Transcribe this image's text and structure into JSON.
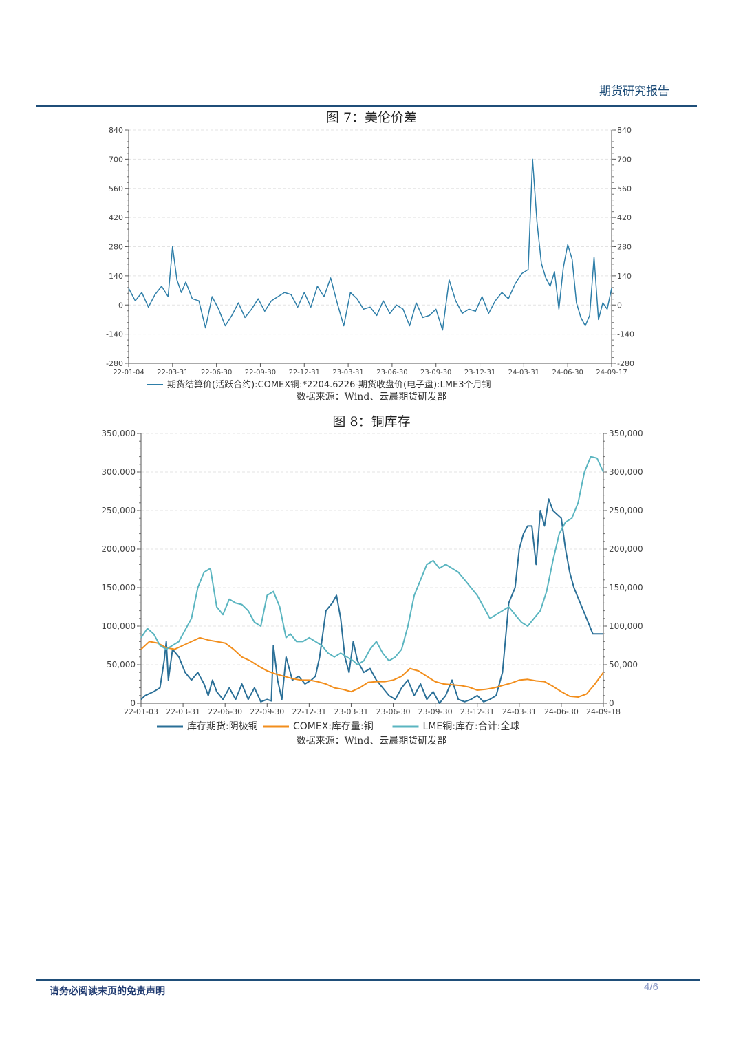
{
  "header": {
    "title": "期货研究报告"
  },
  "footer": {
    "disclaimer": "请务必阅读末页的免责声明",
    "page": "4/6"
  },
  "figures": [
    {
      "title": "图 7：美伦价差",
      "source": "数据来源：Wind、云晨期货研发部"
    },
    {
      "title": "图 8：铜库存",
      "source": "数据来源：Wind、云晨期货研发部"
    }
  ],
  "chart_data": [
    {
      "type": "line",
      "title": "图 7：美伦价差",
      "xlabel": "",
      "ylabel": "",
      "x_ticks": [
        "22-01-04",
        "22-03-31",
        "22-06-30",
        "22-09-30",
        "22-12-31",
        "23-03-31",
        "23-06-30",
        "23-09-30",
        "23-12-31",
        "24-03-31",
        "24-06-30",
        "24-09-17"
      ],
      "y_ticks": [
        "-280",
        "-140",
        "0",
        "140",
        "280",
        "420",
        "560",
        "700",
        "840"
      ],
      "ylim": [
        -280,
        840
      ],
      "grid": true,
      "legend_position": "bottom",
      "series": [
        {
          "name": "期货结算价(活跃合约):COMEX铜:*2204.6226-期货收盘价(电子盘):LME3个月铜",
          "color": "#2e7ea8",
          "x_index": [
            0,
            0.15,
            0.3,
            0.45,
            0.6,
            0.75,
            0.9,
            1.0,
            1.1,
            1.2,
            1.3,
            1.45,
            1.6,
            1.75,
            1.9,
            2.05,
            2.2,
            2.35,
            2.5,
            2.65,
            2.8,
            2.95,
            3.1,
            3.25,
            3.4,
            3.55,
            3.7,
            3.85,
            4.0,
            4.15,
            4.3,
            4.45,
            4.6,
            4.75,
            4.9,
            5.05,
            5.2,
            5.35,
            5.5,
            5.65,
            5.8,
            5.95,
            6.1,
            6.25,
            6.4,
            6.55,
            6.7,
            6.85,
            7.0,
            7.15,
            7.3,
            7.45,
            7.6,
            7.75,
            7.9,
            8.05,
            8.2,
            8.35,
            8.5,
            8.65,
            8.8,
            8.95,
            9.1,
            9.2,
            9.3,
            9.4,
            9.5,
            9.6,
            9.7,
            9.8,
            9.9,
            10.0,
            10.1,
            10.2,
            10.3,
            10.4,
            10.5,
            10.6,
            10.7,
            10.8,
            10.9,
            11.0
          ],
          "values": [
            80,
            20,
            60,
            -10,
            50,
            90,
            40,
            280,
            120,
            60,
            110,
            30,
            20,
            -110,
            40,
            -20,
            -100,
            -50,
            10,
            -60,
            -20,
            30,
            -30,
            20,
            40,
            60,
            50,
            -10,
            60,
            -10,
            90,
            40,
            130,
            10,
            -100,
            60,
            30,
            -20,
            -10,
            -50,
            20,
            -40,
            0,
            -20,
            -100,
            10,
            -60,
            -50,
            -20,
            -120,
            120,
            20,
            -40,
            -20,
            -30,
            40,
            -40,
            20,
            60,
            30,
            100,
            150,
            170,
            700,
            400,
            200,
            130,
            90,
            160,
            -20,
            180,
            290,
            220,
            10,
            -60,
            -100,
            -50,
            230,
            -70,
            10,
            -20,
            80
          ]
        }
      ]
    },
    {
      "type": "line",
      "title": "图 8：铜库存",
      "xlabel": "",
      "ylabel": "",
      "x_ticks": [
        "22-01-03",
        "22-03-31",
        "22-06-30",
        "22-09-30",
        "22-12-31",
        "23-03-31",
        "23-06-30",
        "23-09-30",
        "23-12-31",
        "24-03-31",
        "24-06-30",
        "24-09-18"
      ],
      "y_ticks": [
        "0",
        "50,000",
        "100,000",
        "150,000",
        "200,000",
        "250,000",
        "300,000",
        "350,000"
      ],
      "ylim": [
        0,
        350000
      ],
      "grid": true,
      "legend_position": "bottom",
      "series": [
        {
          "name": "库存期货:阴极铜",
          "color": "#2a6f97",
          "x_index": [
            0,
            0.1,
            0.3,
            0.45,
            0.55,
            0.6,
            0.65,
            0.75,
            0.9,
            1.05,
            1.2,
            1.35,
            1.5,
            1.6,
            1.7,
            1.8,
            1.95,
            2.1,
            2.25,
            2.4,
            2.55,
            2.7,
            2.85,
            3.0,
            3.1,
            3.15,
            3.25,
            3.35,
            3.45,
            3.6,
            3.75,
            3.9,
            4.05,
            4.15,
            4.25,
            4.4,
            4.55,
            4.65,
            4.75,
            4.85,
            4.95,
            5.05,
            5.15,
            5.3,
            5.45,
            5.6,
            5.75,
            5.9,
            6.05,
            6.2,
            6.35,
            6.5,
            6.65,
            6.8,
            6.95,
            7.1,
            7.25,
            7.4,
            7.55,
            7.7,
            7.85,
            8.0,
            8.15,
            8.3,
            8.45,
            8.6,
            8.75,
            8.9,
            9.0,
            9.1,
            9.2,
            9.3,
            9.4,
            9.5,
            9.6,
            9.7,
            9.8,
            9.9,
            10.0,
            10.1,
            10.2,
            10.3,
            10.45,
            10.6,
            10.75,
            10.9,
            11.0
          ],
          "values": [
            5000,
            10000,
            15000,
            20000,
            55000,
            80000,
            30000,
            70000,
            60000,
            40000,
            30000,
            40000,
            25000,
            10000,
            30000,
            15000,
            5000,
            20000,
            5000,
            25000,
            5000,
            20000,
            2000,
            5000,
            3000,
            75000,
            30000,
            5000,
            60000,
            30000,
            35000,
            25000,
            30000,
            35000,
            60000,
            120000,
            130000,
            140000,
            110000,
            60000,
            40000,
            80000,
            55000,
            40000,
            45000,
            30000,
            20000,
            10000,
            5000,
            20000,
            30000,
            10000,
            25000,
            5000,
            15000,
            0,
            10000,
            30000,
            5000,
            2000,
            5000,
            10000,
            2000,
            5000,
            10000,
            40000,
            130000,
            150000,
            200000,
            220000,
            230000,
            230000,
            180000,
            250000,
            230000,
            265000,
            250000,
            245000,
            240000,
            200000,
            170000,
            150000,
            130000,
            110000,
            90000,
            90000,
            90000
          ]
        },
        {
          "name": "COMEX:库存量:铜",
          "color": "#f28e1c",
          "x_index": [
            0,
            0.2,
            0.4,
            0.6,
            0.8,
            1.0,
            1.2,
            1.4,
            1.6,
            1.8,
            2.0,
            2.2,
            2.4,
            2.6,
            2.8,
            3.0,
            3.2,
            3.4,
            3.6,
            3.8,
            4.0,
            4.2,
            4.4,
            4.6,
            4.8,
            5.0,
            5.2,
            5.4,
            5.6,
            5.8,
            6.0,
            6.2,
            6.4,
            6.6,
            6.8,
            7.0,
            7.2,
            7.4,
            7.6,
            7.8,
            8.0,
            8.2,
            8.4,
            8.6,
            8.8,
            9.0,
            9.2,
            9.4,
            9.6,
            9.8,
            10.0,
            10.2,
            10.4,
            10.6,
            10.8,
            11.0
          ],
          "values": [
            70000,
            80000,
            78000,
            72000,
            70000,
            75000,
            80000,
            85000,
            82000,
            80000,
            78000,
            70000,
            60000,
            55000,
            48000,
            42000,
            38000,
            35000,
            32000,
            30000,
            30000,
            28000,
            25000,
            20000,
            18000,
            15000,
            20000,
            27000,
            28000,
            28000,
            30000,
            35000,
            45000,
            42000,
            35000,
            28000,
            25000,
            24000,
            23000,
            21000,
            17000,
            18000,
            20000,
            23000,
            26000,
            30000,
            31000,
            29000,
            28000,
            22000,
            15000,
            9000,
            8000,
            12000,
            25000,
            40000
          ]
        },
        {
          "name": "LME铜:库存:合计:全球",
          "color": "#5ab5c0",
          "x_index": [
            0,
            0.15,
            0.3,
            0.45,
            0.6,
            0.75,
            0.9,
            1.05,
            1.2,
            1.35,
            1.5,
            1.65,
            1.8,
            1.95,
            2.1,
            2.25,
            2.4,
            2.55,
            2.7,
            2.85,
            3.0,
            3.15,
            3.3,
            3.45,
            3.55,
            3.7,
            3.85,
            4.0,
            4.15,
            4.3,
            4.45,
            4.6,
            4.75,
            4.9,
            5.05,
            5.15,
            5.3,
            5.45,
            5.6,
            5.75,
            5.9,
            6.05,
            6.2,
            6.35,
            6.5,
            6.65,
            6.8,
            6.95,
            7.1,
            7.25,
            7.4,
            7.55,
            7.7,
            7.85,
            8.0,
            8.15,
            8.3,
            8.45,
            8.6,
            8.75,
            8.9,
            9.05,
            9.2,
            9.35,
            9.5,
            9.65,
            9.8,
            9.95,
            10.1,
            10.25,
            10.4,
            10.55,
            10.7,
            10.85,
            11.0
          ],
          "values": [
            85000,
            97000,
            90000,
            75000,
            70000,
            75000,
            80000,
            95000,
            110000,
            150000,
            170000,
            175000,
            125000,
            115000,
            135000,
            130000,
            128000,
            120000,
            105000,
            100000,
            140000,
            145000,
            125000,
            85000,
            90000,
            80000,
            80000,
            85000,
            80000,
            75000,
            65000,
            60000,
            65000,
            60000,
            55000,
            50000,
            55000,
            70000,
            80000,
            65000,
            55000,
            60000,
            70000,
            100000,
            140000,
            160000,
            180000,
            185000,
            175000,
            180000,
            175000,
            170000,
            160000,
            150000,
            140000,
            125000,
            110000,
            115000,
            120000,
            125000,
            115000,
            105000,
            100000,
            110000,
            120000,
            145000,
            185000,
            220000,
            235000,
            240000,
            260000,
            300000,
            320000,
            318000,
            300000
          ]
        }
      ]
    }
  ]
}
